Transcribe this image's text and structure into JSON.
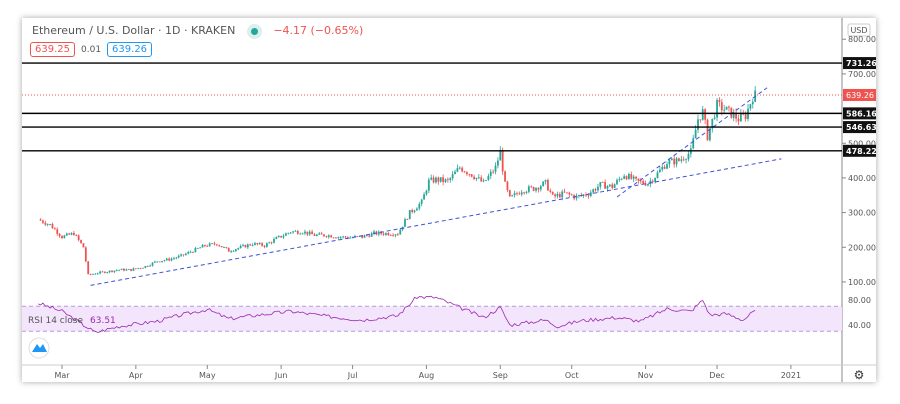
{
  "header": {
    "symbol_title": "Ethereum / U.S. Dollar · 1D · KRAKEN",
    "change": "−4.17 (−0.65%)",
    "bid": "639.25",
    "spread": "0.01",
    "ask": "639.26"
  },
  "colors": {
    "up": "#26a69a",
    "down": "#ef5350",
    "trendline": "#3f51d8",
    "rsi": "#9c27b0",
    "rsi_band": "#f3e5fb"
  },
  "chart_data": [
    {
      "type": "candlestick",
      "currency": "USD",
      "ylim": [
        60,
        840
      ],
      "y_ticks": [
        "800.00",
        "700.00",
        "500.00",
        "400.00",
        "300.00",
        "200.00",
        "100.00"
      ],
      "x_ticks": [
        "Mar",
        "Apr",
        "May",
        "Jun",
        "Jul",
        "Aug",
        "Sep",
        "Oct",
        "Nov",
        "Dec",
        "2021"
      ],
      "last_price": "639.26",
      "horizontal_levels": [
        "731.26",
        "586.16",
        "546.63",
        "478.22"
      ],
      "trendlines": [
        {
          "from": [
            "2020-03-13",
            90
          ],
          "to": [
            "2020-12-28",
            455
          ]
        },
        {
          "from": [
            "2020-10-20",
            345
          ],
          "to": [
            "2020-12-22",
            660
          ]
        }
      ],
      "close_path": [
        [
          "2020-02-20",
          280
        ],
        [
          "2020-02-25",
          265
        ],
        [
          "2020-03-01",
          230
        ],
        [
          "2020-03-06",
          240
        ],
        [
          "2020-03-10",
          200
        ],
        [
          "2020-03-12",
          120
        ],
        [
          "2020-03-15",
          125
        ],
        [
          "2020-03-20",
          130
        ],
        [
          "2020-03-25",
          135
        ],
        [
          "2020-03-30",
          135
        ],
        [
          "2020-04-05",
          145
        ],
        [
          "2020-04-10",
          160
        ],
        [
          "2020-04-15",
          165
        ],
        [
          "2020-04-20",
          175
        ],
        [
          "2020-04-25",
          190
        ],
        [
          "2020-04-30",
          205
        ],
        [
          "2020-05-05",
          210
        ],
        [
          "2020-05-10",
          190
        ],
        [
          "2020-05-15",
          200
        ],
        [
          "2020-05-20",
          210
        ],
        [
          "2020-05-25",
          205
        ],
        [
          "2020-05-30",
          225
        ],
        [
          "2020-06-05",
          245
        ],
        [
          "2020-06-10",
          245
        ],
        [
          "2020-06-15",
          235
        ],
        [
          "2020-06-20",
          235
        ],
        [
          "2020-06-25",
          230
        ],
        [
          "2020-06-30",
          228
        ],
        [
          "2020-07-05",
          230
        ],
        [
          "2020-07-10",
          240
        ],
        [
          "2020-07-20",
          240
        ],
        [
          "2020-07-25",
          300
        ],
        [
          "2020-07-30",
          330
        ],
        [
          "2020-08-02",
          390
        ],
        [
          "2020-08-05",
          395
        ],
        [
          "2020-08-10",
          390
        ],
        [
          "2020-08-15",
          430
        ],
        [
          "2020-08-20",
          410
        ],
        [
          "2020-08-25",
          385
        ],
        [
          "2020-08-30",
          430
        ],
        [
          "2020-09-01",
          475
        ],
        [
          "2020-09-03",
          380
        ],
        [
          "2020-09-05",
          340
        ],
        [
          "2020-09-10",
          365
        ],
        [
          "2020-09-15",
          370
        ],
        [
          "2020-09-20",
          385
        ],
        [
          "2020-09-23",
          345
        ],
        [
          "2020-09-28",
          355
        ],
        [
          "2020-10-03",
          345
        ],
        [
          "2020-10-08",
          355
        ],
        [
          "2020-10-13",
          380
        ],
        [
          "2020-10-18",
          375
        ],
        [
          "2020-10-23",
          410
        ],
        [
          "2020-10-28",
          390
        ],
        [
          "2020-11-02",
          385
        ],
        [
          "2020-11-05",
          405
        ],
        [
          "2020-11-10",
          445
        ],
        [
          "2020-11-15",
          450
        ],
        [
          "2020-11-20",
          475
        ],
        [
          "2020-11-23",
          570
        ],
        [
          "2020-11-25",
          590
        ],
        [
          "2020-11-27",
          520
        ],
        [
          "2020-12-01",
          610
        ],
        [
          "2020-12-05",
          595
        ],
        [
          "2020-12-10",
          570
        ],
        [
          "2020-12-13",
          580
        ],
        [
          "2020-12-16",
          635
        ],
        [
          "2020-12-17",
          639
        ]
      ]
    },
    {
      "type": "line",
      "label": "RSI 14 close",
      "value": "63.51",
      "y_ticks": [
        "80.00",
        "40.00"
      ],
      "bands": [
        30,
        70
      ],
      "ylim": [
        20,
        90
      ],
      "values": [
        [
          "2020-02-20",
          75
        ],
        [
          "2020-03-01",
          62
        ],
        [
          "2020-03-08",
          45
        ],
        [
          "2020-03-15",
          28
        ],
        [
          "2020-03-25",
          38
        ],
        [
          "2020-04-10",
          46
        ],
        [
          "2020-04-20",
          56
        ],
        [
          "2020-05-01",
          65
        ],
        [
          "2020-05-10",
          50
        ],
        [
          "2020-05-20",
          55
        ],
        [
          "2020-06-05",
          62
        ],
        [
          "2020-06-20",
          54
        ],
        [
          "2020-07-05",
          48
        ],
        [
          "2020-07-20",
          55
        ],
        [
          "2020-07-28",
          85
        ],
        [
          "2020-08-05",
          84
        ],
        [
          "2020-08-15",
          68
        ],
        [
          "2020-08-25",
          52
        ],
        [
          "2020-09-01",
          68
        ],
        [
          "2020-09-05",
          40
        ],
        [
          "2020-09-20",
          48
        ],
        [
          "2020-09-25",
          38
        ],
        [
          "2020-10-05",
          47
        ],
        [
          "2020-10-20",
          52
        ],
        [
          "2020-10-30",
          46
        ],
        [
          "2020-11-10",
          66
        ],
        [
          "2020-11-20",
          62
        ],
        [
          "2020-11-25",
          80
        ],
        [
          "2020-11-28",
          56
        ],
        [
          "2020-12-05",
          58
        ],
        [
          "2020-12-12",
          48
        ],
        [
          "2020-12-17",
          63.5
        ]
      ]
    }
  ]
}
